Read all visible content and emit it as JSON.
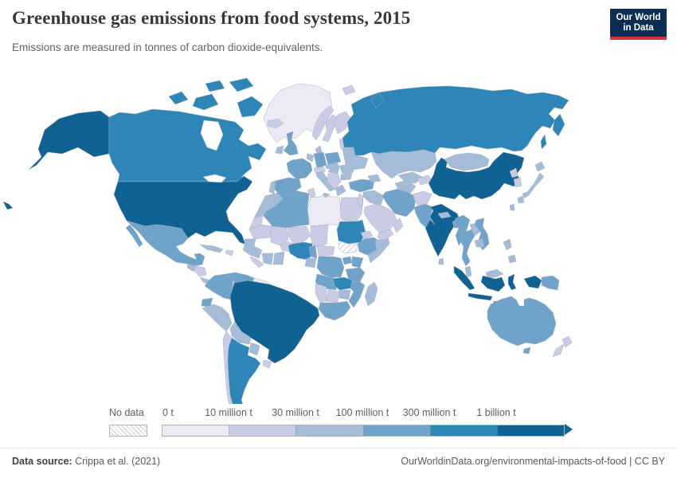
{
  "header": {
    "title": "Greenhouse gas emissions from food systems, 2015",
    "subtitle": "Emissions are measured in tonnes of carbon dioxide-equivalents.",
    "logo_line1": "Our World",
    "logo_line2": "in Data",
    "logo_bg": "#0d2e53",
    "logo_red": "#d0353f"
  },
  "legend": {
    "no_data_label": "No data",
    "bins": [
      {
        "label": "0 t",
        "color": "#eceaf4"
      },
      {
        "label": "10 million t",
        "color": "#c9cce4"
      },
      {
        "label": "30 million t",
        "color": "#a5bcd8"
      },
      {
        "label": "100 million t",
        "color": "#6fa3c9"
      },
      {
        "label": "300 million t",
        "color": "#2e86b8"
      },
      {
        "label": "1 billion t",
        "color": "#0f6292"
      }
    ]
  },
  "footer": {
    "source_label": "Data source:",
    "source_value": " Crippa et al. (2021)",
    "link": "OurWorldinData.org/environmental-impacts-of-food",
    "divider": " | ",
    "license": "CC BY"
  },
  "chart_data": {
    "type": "heatmap",
    "subtype": "choropleth-world-map",
    "title": "Greenhouse gas emissions from food systems, 2015",
    "unit": "tonnes of carbon dioxide-equivalents",
    "year": 2015,
    "legend_position": "bottom",
    "bin_ranges": [
      "0-10 million t",
      "10-30 million t",
      "30-100 million t",
      "100-300 million t",
      "300 million-1 billion t",
      "1 billion t and over"
    ],
    "no_data_style": "diagonal-hatch",
    "country_bins": {
      "greenland": 0,
      "canada": 4,
      "usa": 5,
      "mexico": 3,
      "guatemala": 2,
      "honduras-nicaragua": 1,
      "costa-rica-panama": 2,
      "cuba": 2,
      "hispaniola": 1,
      "colombia": 3,
      "venezuela": 3,
      "guyanas": 0,
      "ecuador": 3,
      "peru": 2,
      "brazil": 5,
      "bolivia": 2,
      "paraguay": 2,
      "uruguay": 1,
      "chile": 1,
      "argentina": 4,
      "iceland": 1,
      "uk": 3,
      "ireland": 2,
      "norway": 1,
      "sweden": 1,
      "finland": 1,
      "denmark": 2,
      "baltics": 1,
      "poland": 3,
      "germany": 3,
      "benelux": 2,
      "france": 3,
      "spain": 3,
      "portugal": 2,
      "italy": 2,
      "switzerland-austria": 1,
      "czech-slovakia": 2,
      "hungary": 2,
      "balkans": 1,
      "greece": 2,
      "romania": 2,
      "bulgaria": 2,
      "belarus": 2,
      "ukraine": 2,
      "svalbard": 1,
      "russia": 4,
      "kazakhstan": 2,
      "turkey": 3,
      "caucasus": 2,
      "iraq": 2,
      "levant": 1,
      "saudi-arabia": 1,
      "yemen": 1,
      "oman": 1,
      "iran": 3,
      "turkmenistan": 2,
      "uzbekistan": 2,
      "kyrgyz-tajik": 1,
      "afghanistan": 1,
      "pakistan": 3,
      "india": 5,
      "nepal": 2,
      "bangladesh": 3,
      "sri-lanka": 2,
      "china": 5,
      "mongolia": 2,
      "north-korea": 1,
      "south-korea": 1,
      "japan": 2,
      "taiwan": 2,
      "myanmar": 3,
      "thailand": 3,
      "laos": 2,
      "vietnam": 3,
      "cambodia": 2,
      "malaysia": 2,
      "indonesia": 5,
      "philippines": 2,
      "papua-new-guinea": 3,
      "australia": 3,
      "new-zealand": 1,
      "morocco": 2,
      "western-sahara": 1,
      "algeria": 3,
      "tunisia": 1,
      "libya": 0,
      "egypt": 1,
      "mauritania": 1,
      "mali": 1,
      "burkina-faso": 1,
      "niger": 1,
      "chad": 1,
      "sudan": 4,
      "south-sudan": "no_data",
      "eritrea": 1,
      "ethiopia": 3,
      "somalia": 2,
      "senegal": 2,
      "guinea": 2,
      "sierra-leone-liberia": 1,
      "ivory-coast": 2,
      "ghana": 2,
      "nigeria": 4,
      "cameroon": 3,
      "central-african-republic": 1,
      "gabon-congo": 2,
      "drc": 3,
      "uganda": 3,
      "kenya": 3,
      "tanzania": 3,
      "angola": 3,
      "zambia": 4,
      "malawi-mozambique": 3,
      "zimbabwe": 2,
      "botswana": 1,
      "namibia": 1,
      "south-africa": 3,
      "madagascar": 2
    }
  }
}
